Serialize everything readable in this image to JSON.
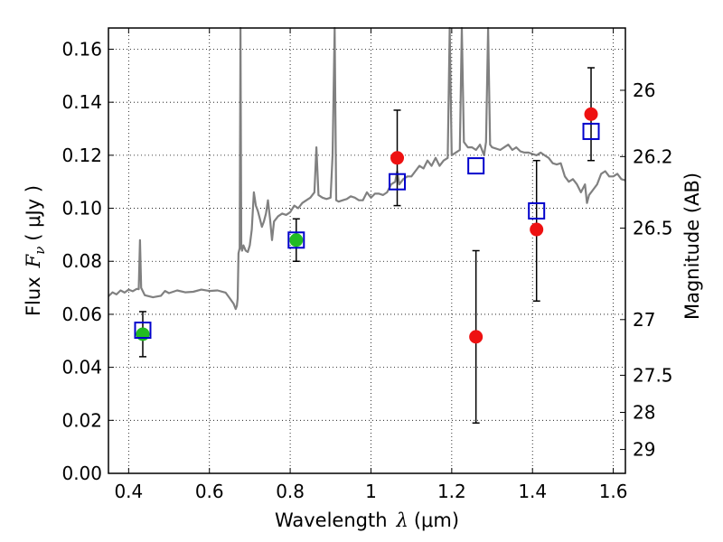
{
  "chart_data": {
    "type": "scatter",
    "xlabel": {
      "text": "Wavelength",
      "symbol": "λ",
      "unit": "(μm)"
    },
    "ylabel": {
      "text": "Flux",
      "symbol": "F",
      "subscript": "ν",
      "unit": "( μJy )"
    },
    "y2label": "Magnitude (AB)",
    "xlim": [
      0.35,
      1.63
    ],
    "ylim": [
      0.0,
      0.168
    ],
    "grid": true,
    "x_ticks": [
      {
        "value": 0.4,
        "label": "0.4"
      },
      {
        "value": 0.6,
        "label": "0.6"
      },
      {
        "value": 0.8,
        "label": "0.8"
      },
      {
        "value": 1.0,
        "label": "1"
      },
      {
        "value": 1.2,
        "label": "1.2"
      },
      {
        "value": 1.4,
        "label": "1.4"
      },
      {
        "value": 1.6,
        "label": "1.6"
      }
    ],
    "y_ticks": [
      {
        "value": 0.0,
        "label": "0.00"
      },
      {
        "value": 0.02,
        "label": "0.02"
      },
      {
        "value": 0.04,
        "label": "0.04"
      },
      {
        "value": 0.06,
        "label": "0.06"
      },
      {
        "value": 0.08,
        "label": "0.08"
      },
      {
        "value": 0.1,
        "label": "0.10"
      },
      {
        "value": 0.12,
        "label": "0.12"
      },
      {
        "value": 0.14,
        "label": "0.14"
      },
      {
        "value": 0.16,
        "label": "0.16"
      }
    ],
    "y2_ticks": [
      {
        "flux": 0.1445,
        "label": "26"
      },
      {
        "flux": 0.1195,
        "label": "26.2"
      },
      {
        "flux": 0.0925,
        "label": "26.5"
      },
      {
        "flux": 0.058,
        "label": "27"
      },
      {
        "flux": 0.037,
        "label": "27.5"
      },
      {
        "flux": 0.023,
        "label": "28"
      },
      {
        "flux": 0.009,
        "label": "29"
      }
    ],
    "series": [
      {
        "kind": "model-spectrum",
        "color": "#808080",
        "points": [
          [
            0.35,
            0.0668
          ],
          [
            0.36,
            0.0683
          ],
          [
            0.37,
            0.0675
          ],
          [
            0.38,
            0.069
          ],
          [
            0.39,
            0.0682
          ],
          [
            0.4,
            0.0693
          ],
          [
            0.41,
            0.0687
          ],
          [
            0.42,
            0.0696
          ],
          [
            0.425,
            0.0695
          ],
          [
            0.428,
            0.088
          ],
          [
            0.431,
            0.07
          ],
          [
            0.44,
            0.0672
          ],
          [
            0.46,
            0.0664
          ],
          [
            0.48,
            0.067
          ],
          [
            0.49,
            0.0688
          ],
          [
            0.5,
            0.068
          ],
          [
            0.52,
            0.069
          ],
          [
            0.54,
            0.0683
          ],
          [
            0.56,
            0.0685
          ],
          [
            0.58,
            0.0693
          ],
          [
            0.6,
            0.0688
          ],
          [
            0.62,
            0.069
          ],
          [
            0.64,
            0.0682
          ],
          [
            0.65,
            0.0661
          ],
          [
            0.66,
            0.064
          ],
          [
            0.665,
            0.062
          ],
          [
            0.668,
            0.0632
          ],
          [
            0.67,
            0.066
          ],
          [
            0.672,
            0.083
          ],
          [
            0.675,
            0.085
          ],
          [
            0.677,
            0.168
          ],
          [
            0.679,
            0.085
          ],
          [
            0.681,
            0.084
          ],
          [
            0.684,
            0.086
          ],
          [
            0.687,
            0.085
          ],
          [
            0.69,
            0.084
          ],
          [
            0.695,
            0.0835
          ],
          [
            0.7,
            0.086
          ],
          [
            0.705,
            0.092
          ],
          [
            0.71,
            0.106
          ],
          [
            0.715,
            0.101
          ],
          [
            0.72,
            0.099
          ],
          [
            0.725,
            0.096
          ],
          [
            0.73,
            0.093
          ],
          [
            0.735,
            0.095
          ],
          [
            0.74,
            0.098
          ],
          [
            0.745,
            0.103
          ],
          [
            0.75,
            0.096
          ],
          [
            0.755,
            0.088
          ],
          [
            0.76,
            0.095
          ],
          [
            0.77,
            0.097
          ],
          [
            0.78,
            0.098
          ],
          [
            0.79,
            0.0975
          ],
          [
            0.8,
            0.0985
          ],
          [
            0.81,
            0.101
          ],
          [
            0.82,
            0.1
          ],
          [
            0.83,
            0.102
          ],
          [
            0.84,
            0.103
          ],
          [
            0.85,
            0.104
          ],
          [
            0.86,
            0.106
          ],
          [
            0.865,
            0.123
          ],
          [
            0.87,
            0.105
          ],
          [
            0.88,
            0.104
          ],
          [
            0.89,
            0.1035
          ],
          [
            0.9,
            0.104
          ],
          [
            0.905,
            0.12
          ],
          [
            0.91,
            0.168
          ],
          [
            0.914,
            0.103
          ],
          [
            0.92,
            0.1025
          ],
          [
            0.93,
            0.103
          ],
          [
            0.94,
            0.1035
          ],
          [
            0.95,
            0.1045
          ],
          [
            0.96,
            0.104
          ],
          [
            0.97,
            0.103
          ],
          [
            0.98,
            0.103
          ],
          [
            0.99,
            0.106
          ],
          [
            1.0,
            0.104
          ],
          [
            1.01,
            0.1055
          ],
          [
            1.02,
            0.1055
          ],
          [
            1.03,
            0.105
          ],
          [
            1.04,
            0.106
          ],
          [
            1.05,
            0.109
          ],
          [
            1.06,
            0.11
          ],
          [
            1.065,
            0.114
          ],
          [
            1.07,
            0.109
          ],
          [
            1.08,
            0.111
          ],
          [
            1.09,
            0.112
          ],
          [
            1.1,
            0.112
          ],
          [
            1.11,
            0.114
          ],
          [
            1.12,
            0.116
          ],
          [
            1.13,
            0.115
          ],
          [
            1.14,
            0.118
          ],
          [
            1.15,
            0.116
          ],
          [
            1.16,
            0.119
          ],
          [
            1.17,
            0.116
          ],
          [
            1.18,
            0.118
          ],
          [
            1.19,
            0.119
          ],
          [
            1.195,
            0.168
          ],
          [
            1.2,
            0.12
          ],
          [
            1.21,
            0.121
          ],
          [
            1.22,
            0.122
          ],
          [
            1.225,
            0.168
          ],
          [
            1.23,
            0.125
          ],
          [
            1.24,
            0.123
          ],
          [
            1.25,
            0.123
          ],
          [
            1.26,
            0.122
          ],
          [
            1.27,
            0.124
          ],
          [
            1.28,
            0.12
          ],
          [
            1.285,
            0.125
          ],
          [
            1.29,
            0.168
          ],
          [
            1.295,
            0.124
          ],
          [
            1.3,
            0.123
          ],
          [
            1.32,
            0.122
          ],
          [
            1.33,
            0.123
          ],
          [
            1.34,
            0.124
          ],
          [
            1.35,
            0.122
          ],
          [
            1.36,
            0.123
          ],
          [
            1.37,
            0.1215
          ],
          [
            1.38,
            0.121
          ],
          [
            1.39,
            0.121
          ],
          [
            1.4,
            0.1205
          ],
          [
            1.41,
            0.12
          ],
          [
            1.42,
            0.121
          ],
          [
            1.43,
            0.12
          ],
          [
            1.44,
            0.119
          ],
          [
            1.45,
            0.117
          ],
          [
            1.46,
            0.1165
          ],
          [
            1.47,
            0.117
          ],
          [
            1.48,
            0.112
          ],
          [
            1.49,
            0.11
          ],
          [
            1.5,
            0.111
          ],
          [
            1.51,
            0.109
          ],
          [
            1.52,
            0.106
          ],
          [
            1.53,
            0.109
          ],
          [
            1.535,
            0.102
          ],
          [
            1.54,
            0.105
          ],
          [
            1.55,
            0.107
          ],
          [
            1.56,
            0.109
          ],
          [
            1.57,
            0.113
          ],
          [
            1.58,
            0.114
          ],
          [
            1.59,
            0.112
          ],
          [
            1.6,
            0.112
          ],
          [
            1.61,
            0.113
          ],
          [
            1.62,
            0.111
          ],
          [
            1.63,
            0.1105
          ]
        ]
      },
      {
        "kind": "model-photometry",
        "marker": "open-square",
        "color": "#0000cc",
        "points": [
          {
            "x": 0.435,
            "y": 0.054
          },
          {
            "x": 0.815,
            "y": 0.088
          },
          {
            "x": 1.065,
            "y": 0.11
          },
          {
            "x": 1.26,
            "y": 0.116
          },
          {
            "x": 1.41,
            "y": 0.099
          },
          {
            "x": 1.545,
            "y": 0.129
          }
        ]
      },
      {
        "kind": "measured-optical",
        "marker": "filled-circle",
        "color": "#22bb22",
        "points": [
          {
            "x": 0.435,
            "y": 0.0525,
            "err": [
              0.044,
              0.061
            ]
          },
          {
            "x": 0.815,
            "y": 0.088,
            "err": [
              0.08,
              0.096
            ]
          }
        ]
      },
      {
        "kind": "measured-nir",
        "marker": "filled-circle",
        "color": "#ee1111",
        "points": [
          {
            "x": 1.065,
            "y": 0.119,
            "err": [
              0.101,
              0.137
            ]
          },
          {
            "x": 1.26,
            "y": 0.0515,
            "err": [
              0.019,
              0.084
            ]
          },
          {
            "x": 1.41,
            "y": 0.092,
            "err": [
              0.065,
              0.118
            ]
          },
          {
            "x": 1.545,
            "y": 0.1355,
            "err": [
              0.118,
              0.153
            ]
          }
        ]
      }
    ]
  }
}
